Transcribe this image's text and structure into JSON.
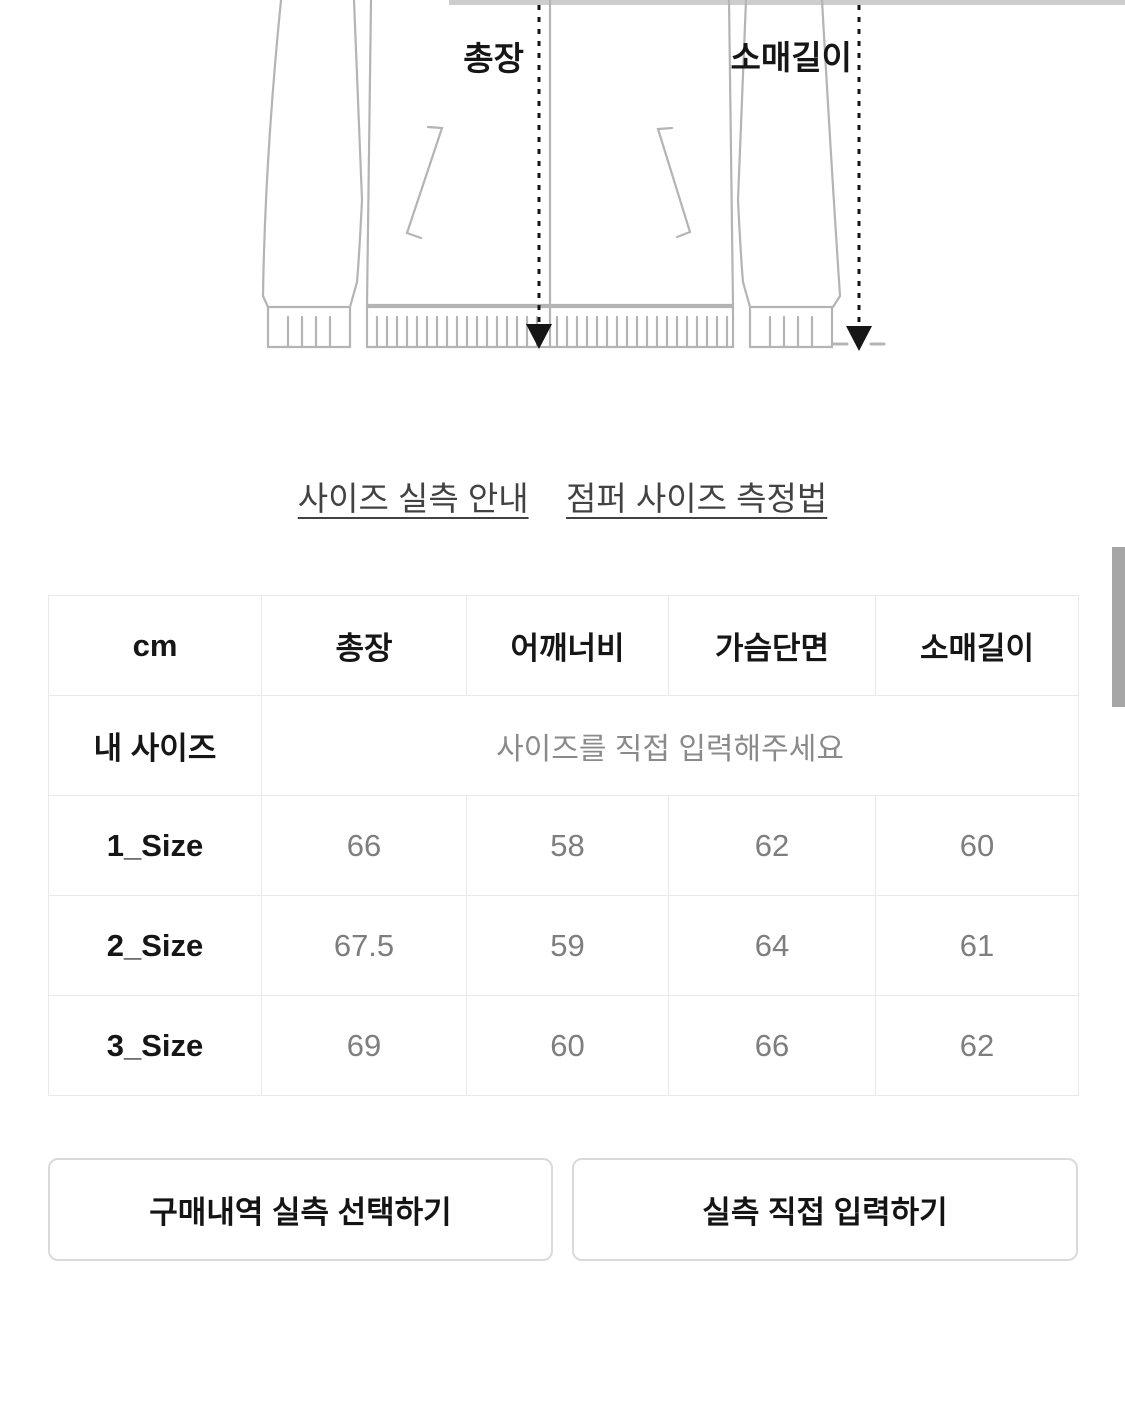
{
  "diagram": {
    "labels": {
      "total_length": "총장",
      "sleeve_length": "소매길이"
    }
  },
  "links": {
    "size_guide": "사이즈 실측 안내",
    "jumper_measure_method": "점퍼 사이즈 측정법"
  },
  "size_table": {
    "unit_header": "cm",
    "columns": [
      "총장",
      "어깨너비",
      "가슴단면",
      "소매길이"
    ],
    "my_size_label": "내 사이즈",
    "my_size_placeholder": "사이즈를 직접 입력해주세요",
    "rows": [
      {
        "label": "1_Size",
        "values": [
          "66",
          "58",
          "62",
          "60"
        ]
      },
      {
        "label": "2_Size",
        "values": [
          "67.5",
          "59",
          "64",
          "61"
        ]
      },
      {
        "label": "3_Size",
        "values": [
          "69",
          "60",
          "66",
          "62"
        ]
      }
    ]
  },
  "buttons": {
    "select_from_purchases": "구매내역 실측 선택하기",
    "enter_directly": "실측 직접 입력하기"
  },
  "colors": {
    "outline_gray": "#b4b4b4",
    "measure_line_black": "#161616",
    "value_gray": "#7e7e7e",
    "border_gray": "#e9e9e9",
    "scrollbar_gray": "#a6a6a6"
  }
}
